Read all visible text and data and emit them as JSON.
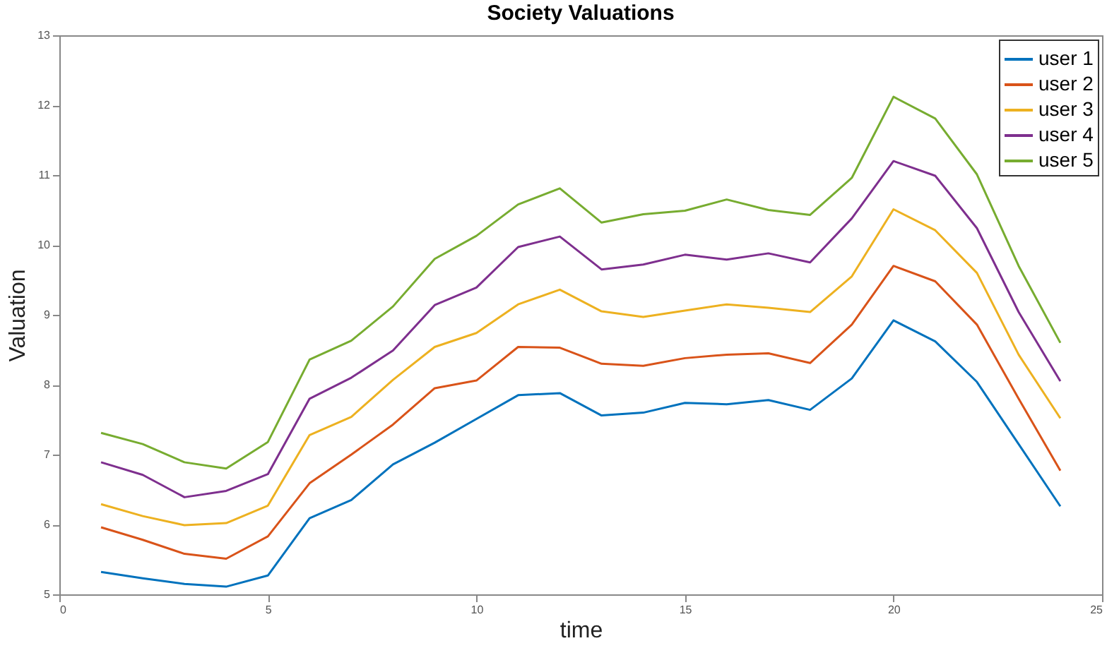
{
  "chart_data": {
    "type": "line",
    "title": "Society Valuations",
    "xlabel": "time",
    "ylabel": "Valuation",
    "x": [
      1,
      2,
      3,
      4,
      5,
      6,
      7,
      8,
      9,
      10,
      11,
      12,
      13,
      14,
      15,
      16,
      17,
      18,
      19,
      20,
      21,
      22,
      23,
      24
    ],
    "xlim": [
      0,
      25
    ],
    "xticks": [
      0,
      5,
      10,
      15,
      20,
      25
    ],
    "ylim": [
      5,
      13
    ],
    "yticks": [
      5,
      6,
      7,
      8,
      9,
      10,
      11,
      12,
      13
    ],
    "grid": false,
    "legend": "top right",
    "marker": "none",
    "line_style": "solid",
    "series": [
      {
        "name": "user 1",
        "color": "#0072bd",
        "values": [
          5.32,
          5.23,
          5.15,
          5.11,
          5.27,
          6.09,
          6.35,
          6.86,
          7.17,
          7.51,
          7.85,
          7.88,
          7.56,
          7.6,
          7.74,
          7.72,
          7.78,
          7.64,
          8.09,
          8.92,
          8.62,
          8.04,
          7.15,
          6.26
        ]
      },
      {
        "name": "user 2",
        "color": "#d95319",
        "values": [
          5.96,
          5.78,
          5.58,
          5.51,
          5.83,
          6.59,
          7.0,
          7.43,
          7.95,
          8.06,
          8.54,
          8.53,
          8.3,
          8.27,
          8.38,
          8.43,
          8.45,
          8.31,
          8.86,
          9.7,
          9.48,
          8.86,
          7.8,
          6.77
        ]
      },
      {
        "name": "user 3",
        "color": "#edb120",
        "values": [
          6.29,
          6.12,
          5.99,
          6.02,
          6.27,
          7.28,
          7.54,
          8.07,
          8.54,
          8.74,
          9.15,
          9.36,
          9.05,
          8.97,
          9.06,
          9.15,
          9.1,
          9.04,
          9.55,
          10.51,
          10.21,
          9.6,
          8.43,
          7.52
        ]
      },
      {
        "name": "user 4",
        "color": "#7e2f8e",
        "values": [
          6.89,
          6.71,
          6.39,
          6.48,
          6.72,
          7.8,
          8.1,
          8.49,
          9.14,
          9.39,
          9.97,
          10.12,
          9.65,
          9.72,
          9.86,
          9.79,
          9.88,
          9.75,
          10.38,
          11.2,
          10.99,
          10.24,
          9.04,
          8.05
        ]
      },
      {
        "name": "user 5",
        "color": "#77ac30",
        "values": [
          7.31,
          7.15,
          6.89,
          6.8,
          7.18,
          8.36,
          8.63,
          9.12,
          9.8,
          10.13,
          10.58,
          10.81,
          10.32,
          10.44,
          10.49,
          10.65,
          10.5,
          10.43,
          10.96,
          12.12,
          11.81,
          11.01,
          9.7,
          8.6
        ]
      }
    ]
  }
}
